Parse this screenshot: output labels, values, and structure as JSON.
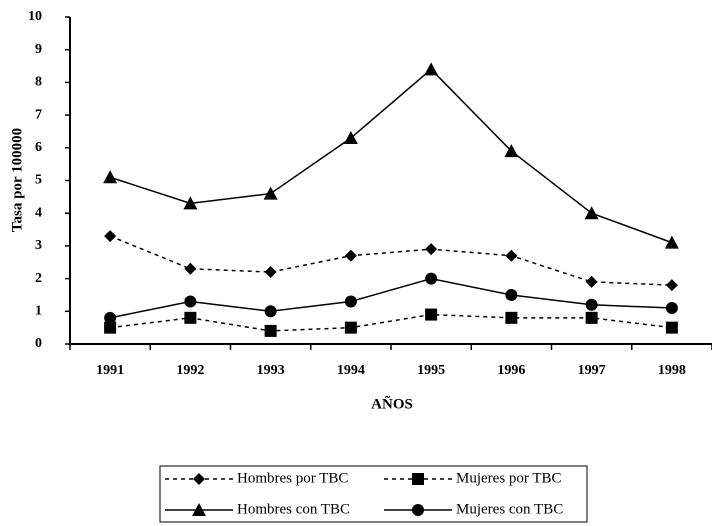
{
  "chart_data": {
    "type": "line",
    "categories": [
      "1991",
      "1992",
      "1993",
      "1994",
      "1995",
      "1996",
      "1997",
      "1998"
    ],
    "x_label": "AÑOS",
    "y_label": "Tasa por 100000",
    "ylim": [
      0,
      10
    ],
    "yticks": [
      0,
      1,
      2,
      3,
      4,
      5,
      6,
      7,
      8,
      9,
      10
    ],
    "grid": false,
    "legend": "bottom",
    "series": [
      {
        "name": "Hombres por TBC",
        "color": "#000000",
        "marker": "diamond",
        "dash": "dashed",
        "values": [
          3.3,
          2.3,
          2.2,
          2.7,
          2.9,
          2.7,
          1.9,
          1.8
        ]
      },
      {
        "name": "Mujeres por TBC",
        "color": "#000000",
        "marker": "square",
        "dash": "dashed",
        "values": [
          0.5,
          0.8,
          0.4,
          0.5,
          0.9,
          0.8,
          0.8,
          0.5
        ]
      },
      {
        "name": "Hombres con TBC",
        "color": "#000000",
        "marker": "triangle",
        "dash": "solid",
        "values": [
          5.1,
          4.3,
          4.6,
          6.3,
          8.4,
          5.9,
          4.0,
          3.1
        ]
      },
      {
        "name": "Mujeres con TBC",
        "color": "#000000",
        "marker": "circle",
        "dash": "solid",
        "values": [
          0.8,
          1.3,
          1.0,
          1.3,
          2.0,
          1.5,
          1.2,
          1.1
        ]
      }
    ]
  }
}
